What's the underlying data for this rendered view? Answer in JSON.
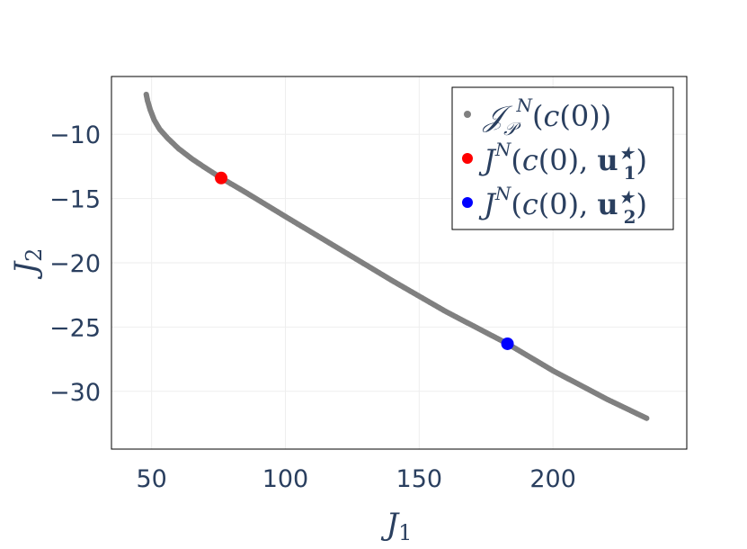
{
  "chart_data": {
    "type": "scatter",
    "xlabel": "J1",
    "ylabel": "J2",
    "xlim": [
      35,
      250
    ],
    "ylim": [
      -34.5,
      -5.5
    ],
    "xticks": [
      50,
      100,
      150,
      200
    ],
    "yticks": [
      -10,
      -15,
      -20,
      -25,
      -30
    ],
    "grid": true,
    "legend_position": "top-right",
    "series": [
      {
        "name": "𝒥𝒫N(c(0))",
        "color": "#808080",
        "marker_size": 4,
        "x": [
          48,
          48.5,
          49.5,
          51,
          53,
          56,
          60,
          65,
          70,
          76,
          85,
          100,
          120,
          140,
          160,
          183,
          200,
          220,
          235
        ],
        "y": [
          -6.9,
          -7.4,
          -8.1,
          -8.9,
          -9.6,
          -10.3,
          -11.1,
          -11.9,
          -12.6,
          -13.4,
          -14.5,
          -16.4,
          -18.9,
          -21.4,
          -23.8,
          -26.3,
          -28.4,
          -30.6,
          -32.1
        ]
      },
      {
        "name": "JN(c(0), u1*)",
        "color": "#ff0000",
        "marker_size": 7,
        "x": [
          76
        ],
        "y": [
          -13.4
        ]
      },
      {
        "name": "JN(c(0), u2*)",
        "color": "#0000ff",
        "marker_size": 7,
        "x": [
          183
        ],
        "y": [
          -26.3
        ]
      }
    ]
  }
}
